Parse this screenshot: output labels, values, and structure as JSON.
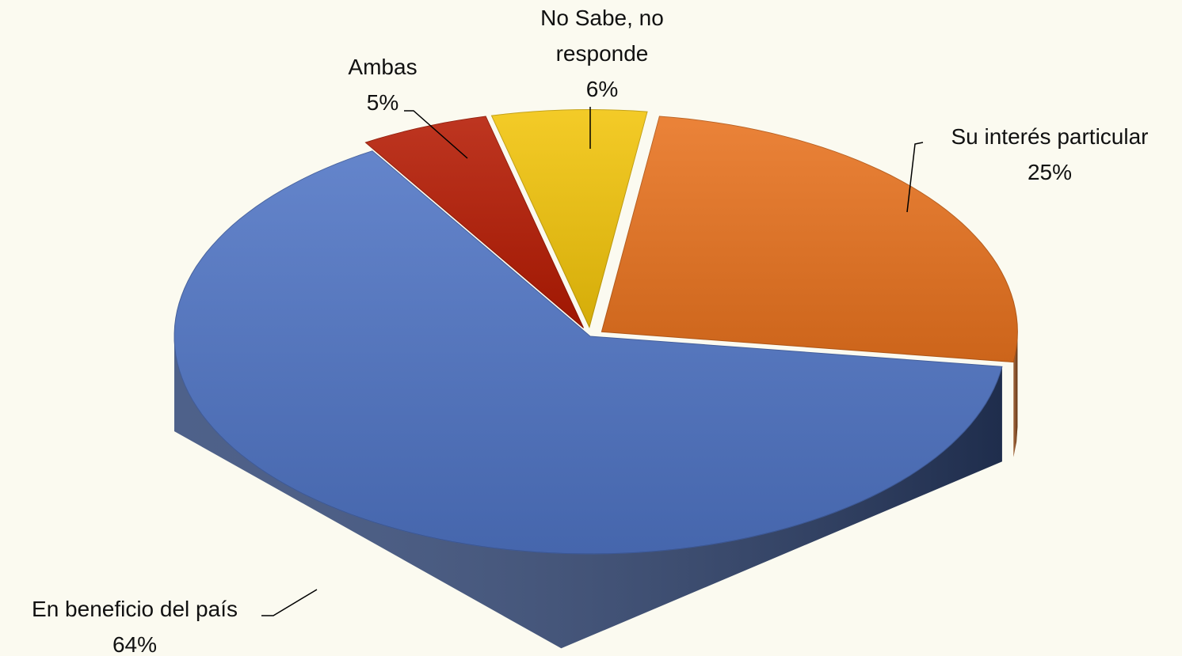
{
  "chart_data": {
    "type": "pie3d",
    "categories": [
      "Su interés particular",
      "En beneficio del país",
      "Ambas",
      "No Sabe, no responde"
    ],
    "values": [
      25,
      64,
      5,
      6
    ],
    "value_labels": [
      "25%",
      "64%",
      "5%",
      "6%"
    ],
    "colors": [
      "#e8721e",
      "#4f74c4",
      "#b51a02",
      "#f2c40a"
    ]
  }
}
